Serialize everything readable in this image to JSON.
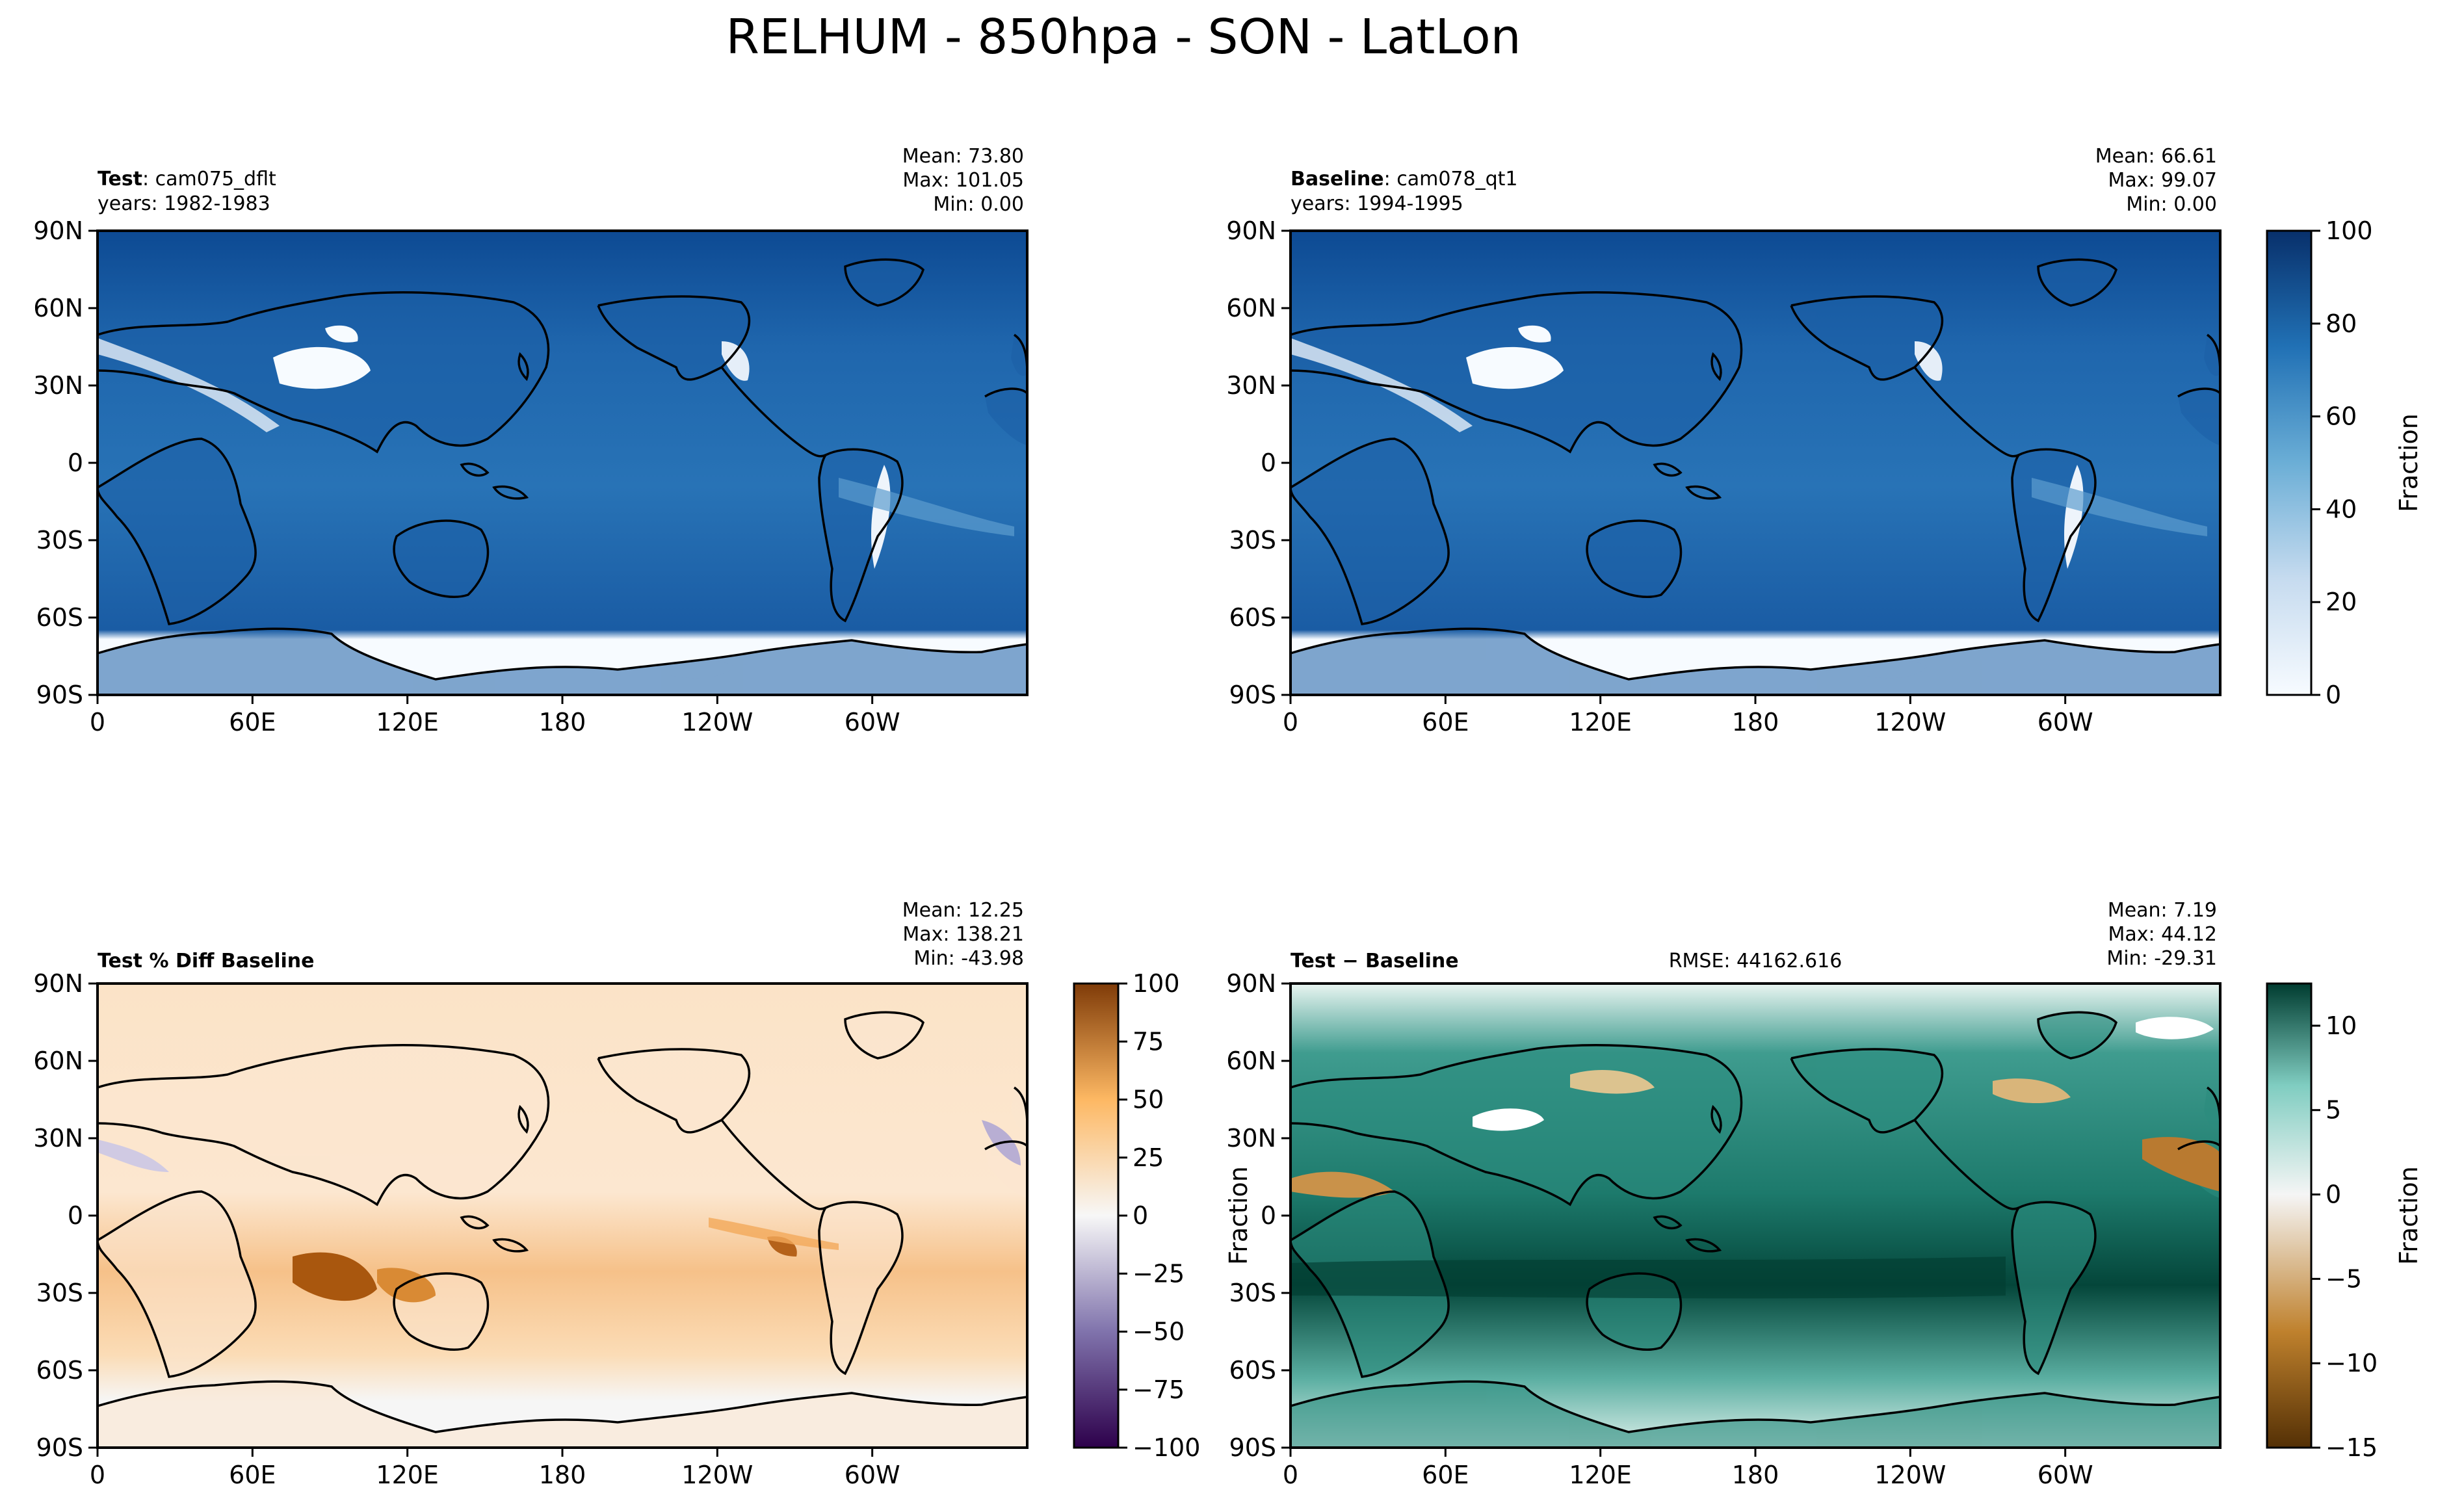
{
  "figure": {
    "title": "RELHUM - 850hpa - SON - LatLon"
  },
  "chart_data": [
    {
      "type": "heatmap",
      "panel": "test",
      "title_bold": "Test",
      "title_rest": ": cam075_dflt",
      "subtitle": "years: 1982-1983",
      "stats": [
        "Mean: 73.80",
        "Max: 101.05",
        "Min:  0.00"
      ],
      "xticks": [
        "0",
        "60E",
        "120E",
        "180",
        "120W",
        "60W"
      ],
      "yticks": [
        "90N",
        "60N",
        "30N",
        "0",
        "30S",
        "60S",
        "90S"
      ],
      "xlim": [
        0,
        360
      ],
      "ylim": [
        -90,
        90
      ],
      "colormap": "Blues",
      "clim": [
        0,
        100
      ]
    },
    {
      "type": "heatmap",
      "panel": "baseline",
      "title_bold": "Baseline",
      "title_rest": ": cam078_qt1",
      "subtitle": "years: 1994-1995",
      "stats": [
        "Mean: 66.61",
        "Max: 99.07",
        "Min:  0.00"
      ],
      "xticks": [
        "0",
        "60E",
        "120E",
        "180",
        "120W",
        "60W"
      ],
      "yticks": [
        "90N",
        "60N",
        "30N",
        "0",
        "30S",
        "60S",
        "90S"
      ],
      "xlim": [
        0,
        360
      ],
      "ylim": [
        -90,
        90
      ],
      "colormap": "Blues",
      "clim": [
        0,
        100
      ],
      "colorbar": {
        "ticks": [
          "0",
          "20",
          "40",
          "60",
          "80",
          "100"
        ],
        "label": "Fraction"
      }
    },
    {
      "type": "heatmap",
      "panel": "pctdiff",
      "title_bold": "Test % Diff Baseline",
      "stats": [
        "Mean: 12.25",
        "Max: 138.21",
        "Min: -43.98"
      ],
      "xticks": [
        "0",
        "60E",
        "120E",
        "180",
        "120W",
        "60W"
      ],
      "yticks": [
        "90N",
        "60N",
        "30N",
        "0",
        "30S",
        "60S",
        "90S"
      ],
      "xlim": [
        0,
        360
      ],
      "ylim": [
        -90,
        90
      ],
      "colormap": "PuOr_r",
      "clim": [
        -100,
        100
      ],
      "colorbar": {
        "ticks": [
          "100",
          "75",
          "50",
          "25",
          "0",
          "−25",
          "−50",
          "−75",
          "−100"
        ]
      }
    },
    {
      "type": "heatmap",
      "panel": "diff",
      "title_bold": "Test − Baseline",
      "rmse": "RMSE: 44162.616",
      "stats": [
        "Mean:  7.19",
        "Max: 44.12",
        "Min: -29.31"
      ],
      "xticks": [
        "0",
        "60E",
        "120E",
        "180",
        "120W",
        "60W"
      ],
      "yticks": [
        "90N",
        "60N",
        "30N",
        "0",
        "30S",
        "60S",
        "90S"
      ],
      "xlim": [
        0,
        360
      ],
      "ylim": [
        -90,
        90
      ],
      "colormap": "BrBG",
      "clim": [
        -15,
        12.5
      ],
      "ylabel": "Fraction",
      "colorbar": {
        "ticks": [
          "10",
          "5",
          "0",
          "−5",
          "−10",
          "−15"
        ],
        "label": "Fraction"
      }
    }
  ],
  "colors": {
    "blues_dark": "#08306b",
    "blues_mid": "#2f7ebc",
    "blues_light": "#f7fbff",
    "puor_top": "#7f3b08",
    "puor_mid": "#f7f7f7",
    "puor_bottom": "#2d004b",
    "brbg_top": "#003c30",
    "brbg_mid": "#f5f5f5",
    "brbg_bottom": "#543005"
  }
}
